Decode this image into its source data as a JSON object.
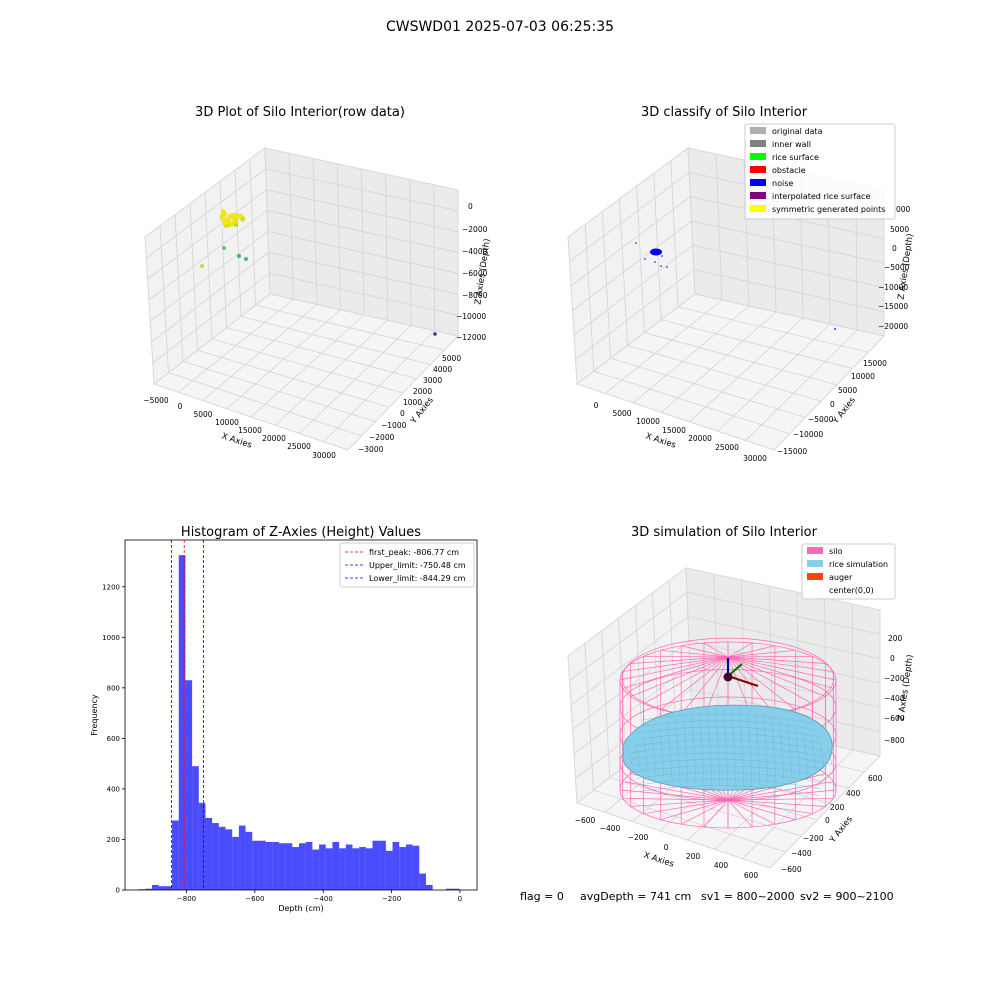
{
  "figure_title": "CWSWD01 2025-07-03 06:25:35",
  "status_line": {
    "flag": "flag = 0",
    "avg_depth": "avgDepth = 741 cm",
    "sv1": "sv1 = 800~2000",
    "sv2": "sv2 = 900~2100"
  },
  "chart_data": [
    {
      "type": "scatter",
      "title": "3D Plot of Silo Interior(row data)",
      "xlabel": "X Axies",
      "ylabel": "Y Axies",
      "zlabel": "Z Axies (Depth)",
      "x_ticks": [
        "−5000",
        "0",
        "5000",
        "10000",
        "15000",
        "20000",
        "25000",
        "30000"
      ],
      "y_ticks": [
        "−3000",
        "−2000",
        "−1000",
        "0",
        "1000",
        "2000",
        "3000",
        "4000",
        "5000"
      ],
      "z_ticks": [
        "0",
        "−2000",
        "−4000",
        "−6000",
        "−8000",
        "−10000",
        "−12000"
      ],
      "points": [
        {
          "x": 0,
          "y": 0,
          "z": -300,
          "color": "#f1e51d"
        },
        {
          "x": -300,
          "y": 100,
          "z": -600,
          "color": "#d8e219"
        },
        {
          "x": 400,
          "y": -200,
          "z": -1000,
          "color": "#b5de2b"
        },
        {
          "x": -800,
          "y": 200,
          "z": -4500,
          "color": "#5ec962"
        },
        {
          "x": 1500,
          "y": -300,
          "z": -4800,
          "color": "#35b779"
        },
        {
          "x": 2500,
          "y": 0,
          "z": -4600,
          "color": "#3fbc73"
        },
        {
          "x": -2500,
          "y": 300,
          "z": -6000,
          "color": "#c8e020"
        },
        {
          "x": 30000,
          "y": 0,
          "z": -12000,
          "color": "#443983"
        }
      ]
    },
    {
      "type": "scatter",
      "title": "3D classify of Silo Interior",
      "xlabel": "X Axies",
      "ylabel": "Y Axies",
      "zlabel": "Z Axies (Depth)",
      "x_ticks": [
        "0",
        "5000",
        "10000",
        "15000",
        "20000",
        "25000",
        "30000"
      ],
      "y_ticks": [
        "−15000",
        "−10000",
        "−5000",
        "0",
        "5000",
        "10000",
        "15000"
      ],
      "z_ticks": [
        "5000",
        "0",
        "−5000",
        "−10000",
        "−15000",
        "−20000"
      ],
      "z_tick_partial": "000",
      "legend": [
        {
          "label": "original data",
          "color": "#b0b0b0"
        },
        {
          "label": "inner wall",
          "color": "#808080"
        },
        {
          "label": "rice surface",
          "color": "#00ff00"
        },
        {
          "label": "obstacle",
          "color": "#ff0000"
        },
        {
          "label": "noise",
          "color": "#0000ff"
        },
        {
          "label": "interpolated rice surface",
          "color": "#800080"
        },
        {
          "label": "symmetric generated points",
          "color": "#ffff00"
        }
      ],
      "legend_position": "top-right"
    },
    {
      "type": "bar",
      "title": "Histogram of Z-Axies (Height) Values",
      "xlabel": "Depth (cm)",
      "ylabel": "Frequency",
      "xlim": [
        -980,
        50
      ],
      "ylim": [
        0,
        1385
      ],
      "x_ticks": [
        {
          "v": -800,
          "label": "−800"
        },
        {
          "v": -600,
          "label": "−600"
        },
        {
          "v": -400,
          "label": "−400"
        },
        {
          "v": -200,
          "label": "−200"
        },
        {
          "v": 0,
          "label": "0"
        }
      ],
      "y_ticks": [
        {
          "v": 0,
          "label": "0"
        },
        {
          "v": 200,
          "label": "200"
        },
        {
          "v": 400,
          "label": "400"
        },
        {
          "v": 600,
          "label": "600"
        },
        {
          "v": 800,
          "label": "800"
        },
        {
          "v": 1000,
          "label": "1000"
        },
        {
          "v": 1200,
          "label": "1200"
        }
      ],
      "bar_color": "#0000ff",
      "bins_start": -940,
      "bin_width": 19.55,
      "values": [
        3,
        5,
        20,
        15,
        15,
        275,
        1325,
        830,
        490,
        345,
        285,
        265,
        250,
        240,
        210,
        255,
        230,
        195,
        195,
        190,
        190,
        185,
        185,
        170,
        185,
        190,
        160,
        180,
        165,
        190,
        165,
        180,
        165,
        170,
        165,
        195,
        195,
        155,
        190,
        170,
        180,
        175,
        65,
        20,
        0,
        0,
        5,
        5,
        0
      ],
      "lines": [
        {
          "label": "first_peak: -806.77 cm",
          "x": -806.77,
          "color": "#ff0000"
        },
        {
          "label": "Upper_limit: -750.48 cm",
          "x": -750.48,
          "color": "#0000ff"
        },
        {
          "label": "Lower_limit: -844.29 cm",
          "x": -844.29,
          "color": "#0000ff"
        }
      ],
      "legend_position": "top-right"
    },
    {
      "type": "surface",
      "title": "3D simulation of Silo Interior",
      "xlabel": "X Axies",
      "ylabel": "Y Axies",
      "zlabel": "Z Axies (Depth)",
      "x_ticks": [
        "−600",
        "−400",
        "−200",
        "0",
        "200",
        "400",
        "600"
      ],
      "y_ticks": [
        "−600",
        "−400",
        "−200",
        "0",
        "200",
        "400",
        "600"
      ],
      "z_ticks": [
        "200",
        "0",
        "−200",
        "−400",
        "−600",
        "−800"
      ],
      "legend": [
        {
          "label": "silo",
          "color": "#ff69b4"
        },
        {
          "label": "rice simulation",
          "color": "#87ceeb"
        },
        {
          "label": "auger",
          "color": "#ff4500"
        },
        {
          "label": "center(0,0)",
          "color": ""
        }
      ],
      "legend_position": "top-right"
    }
  ]
}
